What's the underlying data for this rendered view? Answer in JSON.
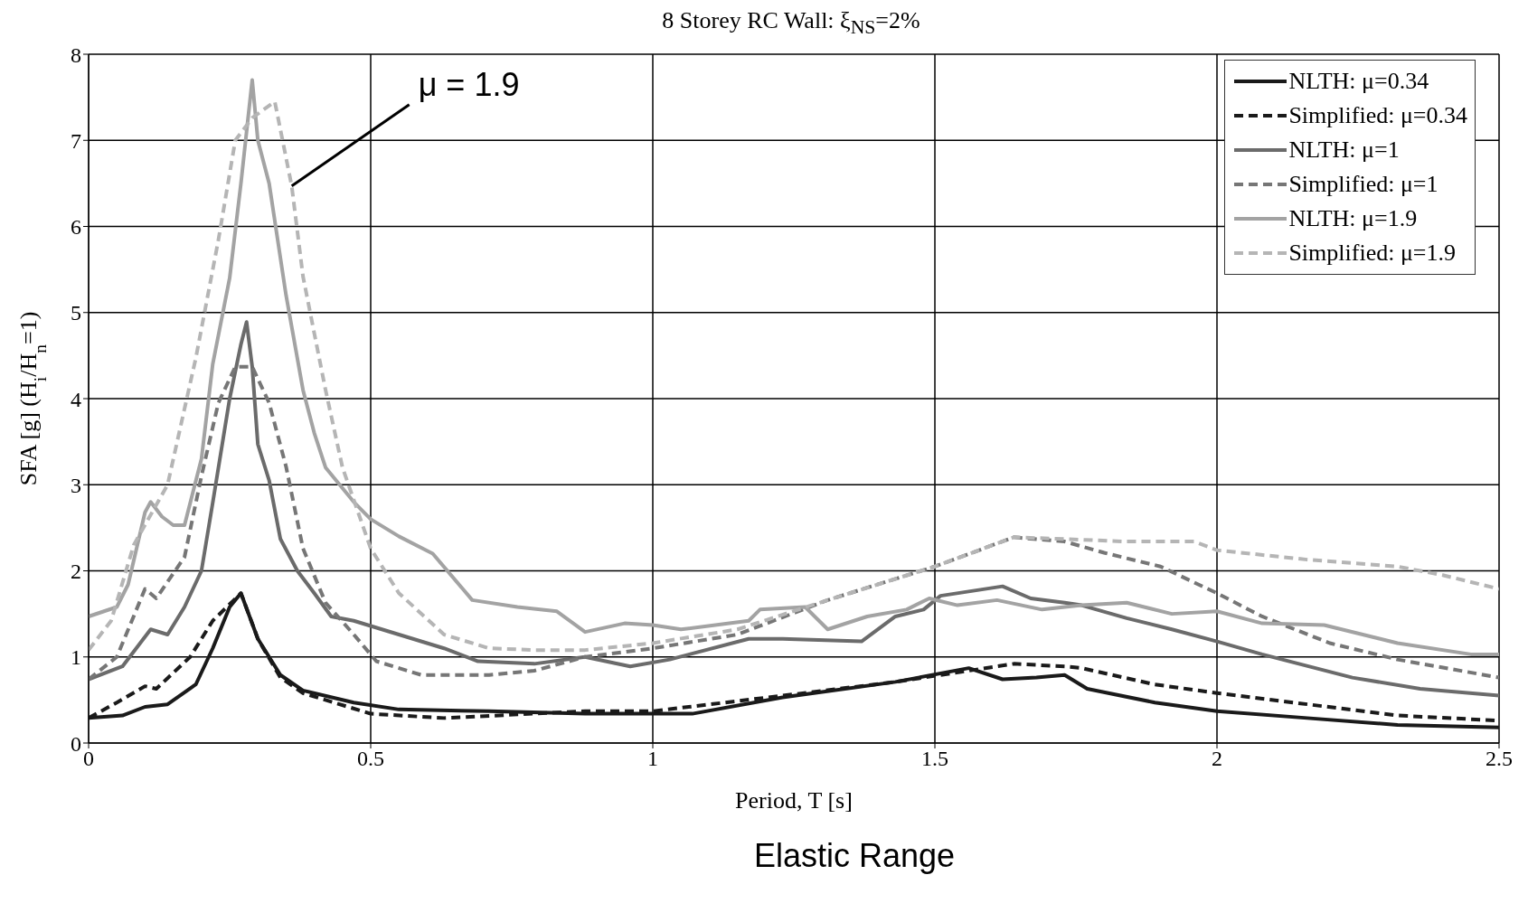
{
  "chart_data": {
    "type": "line",
    "title": "8 Storey RC Wall: ξ$_{NS}$=2%",
    "xlabel": "Period, T [s]",
    "ylabel": "SFA [g] (H$_{i}$/H$_{n}$=1)",
    "xlim": [
      0,
      2.5
    ],
    "xticks": [
      0,
      0.5,
      1,
      1.5,
      2,
      2.5
    ],
    "ylim": [
      0,
      8
    ],
    "yticks": [
      0,
      1,
      2,
      3,
      4,
      5,
      6,
      7,
      8
    ],
    "grid": true,
    "legend": "top right",
    "marker": "none",
    "annotations": [
      {
        "text": "μ = 1.9",
        "x": 0.36,
        "y": 6.47
      },
      "Elastic Range"
    ],
    "series": [
      {
        "name": "NLTH: μ=0.34",
        "color": "#1a1a1a",
        "line_style": "solid",
        "x": [
          0,
          0.06,
          0.1,
          0.14,
          0.19,
          0.22,
          0.25,
          0.27,
          0.3,
          0.34,
          0.38,
          0.47,
          0.55,
          0.71,
          0.88,
          1.0,
          1.07,
          1.23,
          1.43,
          1.56,
          1.62,
          1.68,
          1.73,
          1.77,
          1.89,
          2.0,
          2.16,
          2.32,
          2.5
        ],
        "values": [
          0.29,
          0.32,
          0.42,
          0.45,
          0.68,
          1.1,
          1.58,
          1.74,
          1.21,
          0.79,
          0.61,
          0.47,
          0.39,
          0.37,
          0.34,
          0.34,
          0.34,
          0.53,
          0.71,
          0.87,
          0.74,
          0.76,
          0.79,
          0.63,
          0.47,
          0.37,
          0.29,
          0.21,
          0.18
        ]
      },
      {
        "name": "Simplified: μ=0.34",
        "color": "#1a1a1a",
        "line_style": "dashed",
        "x": [
          0,
          0.05,
          0.1,
          0.12,
          0.18,
          0.22,
          0.27,
          0.3,
          0.34,
          0.38,
          0.5,
          0.63,
          0.88,
          1.0,
          1.23,
          1.43,
          1.56,
          1.64,
          1.73,
          1.76,
          1.89,
          2.0,
          2.16,
          2.32,
          2.5
        ],
        "values": [
          0.29,
          0.47,
          0.66,
          0.63,
          1.0,
          1.42,
          1.74,
          1.21,
          0.76,
          0.58,
          0.34,
          0.29,
          0.37,
          0.37,
          0.55,
          0.71,
          0.84,
          0.92,
          0.89,
          0.87,
          0.68,
          0.58,
          0.45,
          0.32,
          0.26
        ]
      },
      {
        "name": "NLTH: μ=1",
        "color": "#6b6b6b",
        "line_style": "solid",
        "x": [
          0,
          0.06,
          0.11,
          0.14,
          0.17,
          0.2,
          0.22,
          0.25,
          0.27,
          0.28,
          0.29,
          0.3,
          0.32,
          0.34,
          0.37,
          0.4,
          0.43,
          0.47,
          0.55,
          0.63,
          0.69,
          0.79,
          0.88,
          0.96,
          1.03,
          1.17,
          1.23,
          1.37,
          1.43,
          1.48,
          1.51,
          1.62,
          1.67,
          1.73,
          1.76,
          1.84,
          1.92,
          2.0,
          2.08,
          2.24,
          2.36,
          2.5
        ],
        "values": [
          0.74,
          0.89,
          1.32,
          1.26,
          1.58,
          2.0,
          2.79,
          4.0,
          4.63,
          4.89,
          4.37,
          3.47,
          3.05,
          2.37,
          2.0,
          1.74,
          1.47,
          1.42,
          1.26,
          1.1,
          0.95,
          0.92,
          1.0,
          0.89,
          0.97,
          1.21,
          1.21,
          1.18,
          1.47,
          1.55,
          1.71,
          1.82,
          1.68,
          1.63,
          1.6,
          1.45,
          1.32,
          1.18,
          1.03,
          0.76,
          0.63,
          0.55
        ]
      },
      {
        "name": "Simplified: μ=1",
        "color": "#767676",
        "line_style": "dashed",
        "x": [
          0,
          0.05,
          0.1,
          0.12,
          0.17,
          0.2,
          0.23,
          0.26,
          0.29,
          0.32,
          0.35,
          0.38,
          0.42,
          0.47,
          0.51,
          0.59,
          0.71,
          0.79,
          0.88,
          1.0,
          1.15,
          1.31,
          1.5,
          1.64,
          1.73,
          1.8,
          1.9,
          2.0,
          2.08,
          2.2,
          2.32,
          2.5
        ],
        "values": [
          0.74,
          1.0,
          1.79,
          1.68,
          2.16,
          3.1,
          3.95,
          4.37,
          4.37,
          3.95,
          3.21,
          2.26,
          1.63,
          1.26,
          0.95,
          0.79,
          0.79,
          0.84,
          1.0,
          1.1,
          1.26,
          1.66,
          2.05,
          2.39,
          2.34,
          2.21,
          2.05,
          1.74,
          1.47,
          1.16,
          0.97,
          0.76
        ]
      },
      {
        "name": "NLTH: μ=1.9",
        "color": "#a3a3a3",
        "line_style": "solid",
        "x": [
          0,
          0.05,
          0.07,
          0.1,
          0.11,
          0.13,
          0.15,
          0.17,
          0.2,
          0.22,
          0.25,
          0.27,
          0.29,
          0.3,
          0.32,
          0.35,
          0.38,
          0.4,
          0.42,
          0.47,
          0.5,
          0.55,
          0.61,
          0.68,
          0.76,
          0.83,
          0.88,
          0.95,
          1.0,
          1.05,
          1.17,
          1.19,
          1.27,
          1.31,
          1.38,
          1.45,
          1.49,
          1.54,
          1.61,
          1.69,
          1.76,
          1.84,
          1.92,
          2.0,
          2.08,
          2.19,
          2.32,
          2.45,
          2.5
        ],
        "values": [
          1.47,
          1.58,
          1.84,
          2.68,
          2.8,
          2.63,
          2.53,
          2.53,
          3.3,
          4.4,
          5.4,
          6.5,
          7.7,
          7.0,
          6.5,
          5.2,
          4.1,
          3.6,
          3.2,
          2.8,
          2.6,
          2.4,
          2.2,
          1.66,
          1.58,
          1.53,
          1.29,
          1.39,
          1.37,
          1.32,
          1.42,
          1.55,
          1.58,
          1.32,
          1.47,
          1.55,
          1.68,
          1.6,
          1.66,
          1.55,
          1.6,
          1.63,
          1.5,
          1.53,
          1.39,
          1.37,
          1.16,
          1.03,
          1.03
        ]
      },
      {
        "name": "Simplified: μ=1.9",
        "color": "#b5b5b5",
        "line_style": "dashed",
        "x": [
          0,
          0.04,
          0.08,
          0.14,
          0.19,
          0.23,
          0.26,
          0.29,
          0.33,
          0.36,
          0.38,
          0.42,
          0.45,
          0.5,
          0.55,
          0.63,
          0.71,
          0.79,
          0.88,
          1.0,
          1.15,
          1.31,
          1.5,
          1.64,
          1.73,
          1.84,
          1.96,
          2.0,
          2.16,
          2.32,
          2.4,
          2.5
        ],
        "values": [
          1.08,
          1.42,
          2.3,
          3.0,
          4.47,
          5.84,
          7.0,
          7.26,
          7.45,
          6.47,
          5.42,
          4.1,
          3.2,
          2.26,
          1.74,
          1.26,
          1.1,
          1.08,
          1.08,
          1.16,
          1.32,
          1.66,
          2.05,
          2.39,
          2.37,
          2.34,
          2.34,
          2.24,
          2.13,
          2.05,
          1.95,
          1.79
        ]
      }
    ]
  }
}
